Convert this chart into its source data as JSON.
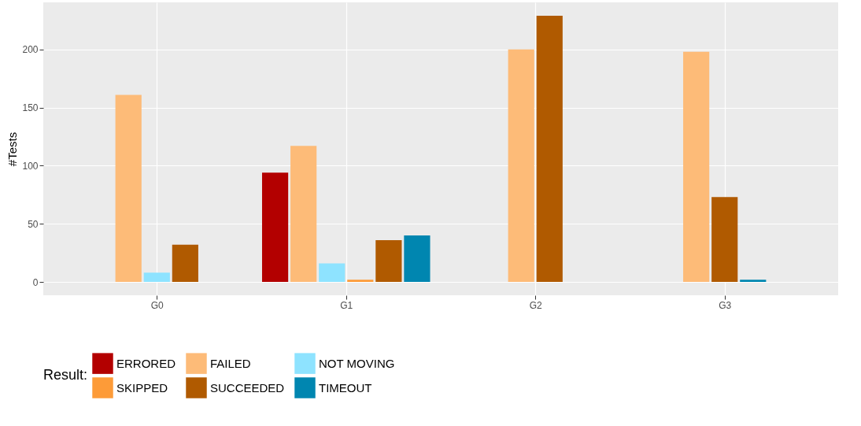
{
  "chart_data": {
    "type": "bar",
    "ylabel": "#Tests",
    "legend_title": "Result:",
    "categories": [
      "G0",
      "G1",
      "G2",
      "G3"
    ],
    "series": [
      {
        "name": "ERRORED",
        "color": "#b30000",
        "values": [
          null,
          94,
          null,
          null
        ]
      },
      {
        "name": "FAILED",
        "color": "#fdbb78",
        "values": [
          161,
          117,
          200,
          198
        ]
      },
      {
        "name": "NOT MOVING",
        "color": "#8ee3ff",
        "values": [
          8,
          16,
          null,
          null
        ]
      },
      {
        "name": "SKIPPED",
        "color": "#fd9b38",
        "values": [
          null,
          2,
          null,
          null
        ]
      },
      {
        "name": "SUCCEEDED",
        "color": "#b05a00",
        "values": [
          32,
          36,
          229,
          73
        ]
      },
      {
        "name": "TIMEOUT",
        "color": "#0086b0",
        "values": [
          null,
          40,
          null,
          2
        ]
      }
    ],
    "ylim": [
      -11.45,
      240.5
    ],
    "yticks": [
      0,
      50,
      100,
      150,
      200
    ],
    "grid": true,
    "legend": "bottom"
  }
}
